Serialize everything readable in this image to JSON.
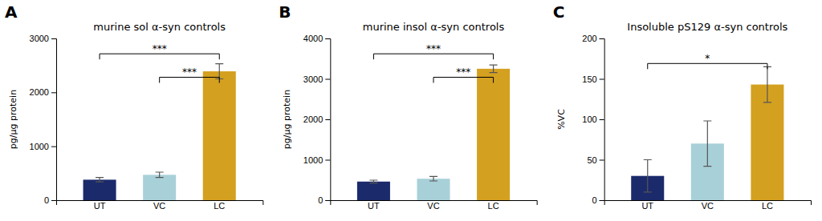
{
  "chart_data": [
    {
      "type": "bar",
      "panel_label": "A",
      "title": "murine sol α-syn controls",
      "ylabel": "pg/µg protein",
      "categories": [
        "UT",
        "VC",
        "LC"
      ],
      "values": [
        380,
        470,
        2390
      ],
      "errors": [
        40,
        50,
        140
      ],
      "colors": [
        "#1b2a6b",
        "#a8d0d8",
        "#d4a020"
      ],
      "ylim": [
        0,
        3000
      ],
      "yticks": [
        0,
        1000,
        2000,
        3000
      ],
      "grid": false,
      "brackets": [
        {
          "x1": "UT",
          "x2": "LC",
          "y": 2715,
          "label": "***"
        },
        {
          "x1": "VC",
          "x2": "LC",
          "y": 2280,
          "label": "***"
        }
      ]
    },
    {
      "type": "bar",
      "panel_label": "B",
      "title": "murine insol α-syn controls",
      "ylabel": "pg/µg protein",
      "categories": [
        "UT",
        "VC",
        "LC"
      ],
      "values": [
        460,
        530,
        3250
      ],
      "errors": [
        35,
        55,
        95
      ],
      "colors": [
        "#1b2a6b",
        "#a8d0d8",
        "#d4a020"
      ],
      "ylim": [
        0,
        4000
      ],
      "yticks": [
        0,
        1000,
        2000,
        3000,
        4000
      ],
      "grid": false,
      "brackets": [
        {
          "x1": "UT",
          "x2": "LC",
          "y": 3620,
          "label": "***"
        },
        {
          "x1": "VC",
          "x2": "LC",
          "y": 3040,
          "label": "***"
        }
      ]
    },
    {
      "type": "bar",
      "panel_label": "C",
      "title": "Insoluble pS129 α-syn controls",
      "ylabel": "%VC",
      "categories": [
        "UT",
        "VC",
        "LC"
      ],
      "values": [
        30,
        70,
        143
      ],
      "errors": [
        20,
        28,
        22
      ],
      "colors": [
        "#1b2a6b",
        "#a8d0d8",
        "#d4a020"
      ],
      "ylim": [
        0,
        200
      ],
      "yticks": [
        0,
        50,
        100,
        150,
        200
      ],
      "grid": false,
      "brackets": [
        {
          "x1": "UT",
          "x2": "LC",
          "y": 169,
          "label": "*"
        }
      ]
    }
  ]
}
